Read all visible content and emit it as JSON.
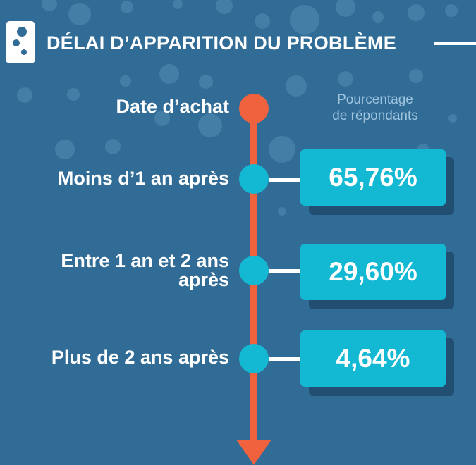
{
  "header": {
    "title": "DÉLAI D’APPARITION DU PROBLÈME",
    "logo_icon": "dice-icon"
  },
  "subtitle": {
    "line1": "Pourcentage",
    "line2": "de répondants"
  },
  "timeline": {
    "start_label": "Date d’achat",
    "items": [
      {
        "label_line1": "Moins d’1 an après",
        "label_line2": "",
        "value": "65,76%"
      },
      {
        "label_line1": "Entre 1 an et 2 ans",
        "label_line2": "après",
        "value": "29,60%"
      },
      {
        "label_line1": "Plus de 2 ans après",
        "label_line2": "",
        "value": "4,64%"
      }
    ]
  },
  "colors": {
    "background": "#316c97",
    "timeline": "#f0613e",
    "accent": "#13b8d2",
    "card_shadow": "#224e72",
    "subtitle": "#9fc4de"
  }
}
